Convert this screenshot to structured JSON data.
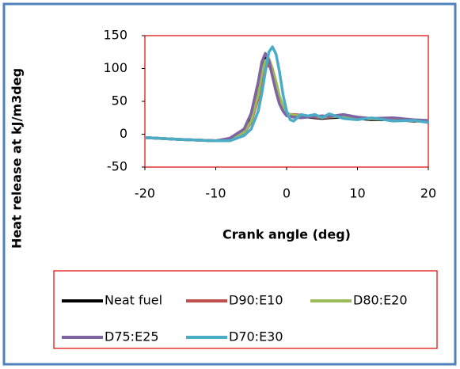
{
  "chart_data": {
    "type": "line",
    "y_label": "Heat release at kJ/m3deg",
    "x_label": "Crank angle (deg)",
    "x": [
      -20,
      -15,
      -10,
      -8,
      -6,
      -5,
      -4,
      -3.5,
      -3,
      -2.5,
      -2,
      -1.5,
      -1,
      -0.5,
      0,
      0.5,
      1,
      2,
      3,
      4,
      5,
      6,
      8,
      10,
      12,
      15,
      18,
      20
    ],
    "xlim": [
      -20,
      20
    ],
    "xticks": [
      -20,
      -10,
      0,
      10,
      20
    ],
    "ylim": [
      -50,
      150
    ],
    "yticks": [
      -50,
      0,
      50,
      100,
      150
    ],
    "series": [
      {
        "name": "Neat fuel",
        "color": "#000000",
        "values": [
          -5,
          -8,
          -10,
          -8,
          5,
          25,
          65,
          95,
          118,
          110,
          90,
          70,
          50,
          38,
          30,
          28,
          27,
          28,
          26,
          25,
          24,
          25,
          26,
          24,
          22,
          22,
          20,
          20
        ]
      },
      {
        "name": "D90:E10",
        "color": "#c0504d",
        "values": [
          -5,
          -8,
          -10,
          -7,
          2,
          18,
          55,
          85,
          102,
          105,
          95,
          78,
          55,
          40,
          32,
          30,
          30,
          29,
          27,
          26,
          25,
          26,
          28,
          25,
          23,
          24,
          21,
          20
        ]
      },
      {
        "name": "D80:E20",
        "color": "#9bbb59",
        "values": [
          -5,
          -8,
          -10,
          -7,
          3,
          20,
          60,
          92,
          112,
          115,
          100,
          80,
          58,
          42,
          33,
          30,
          29,
          28,
          27,
          27,
          26,
          27,
          27,
          25,
          23,
          22,
          21,
          19
        ]
      },
      {
        "name": "D75:E25",
        "color": "#8064a2",
        "values": [
          -5,
          -8,
          -10,
          -6,
          8,
          32,
          80,
          110,
          123,
          112,
          88,
          65,
          46,
          35,
          28,
          27,
          26,
          25,
          26,
          27,
          28,
          27,
          30,
          26,
          24,
          25,
          22,
          21
        ]
      },
      {
        "name": "D70:E30",
        "color": "#4bacc6",
        "values": [
          -5,
          -8,
          -10,
          -10,
          -2,
          8,
          35,
          62,
          95,
          125,
          133,
          122,
          95,
          60,
          35,
          22,
          20,
          30,
          28,
          30,
          25,
          31,
          24,
          22,
          25,
          20,
          21,
          18
        ]
      }
    ]
  }
}
